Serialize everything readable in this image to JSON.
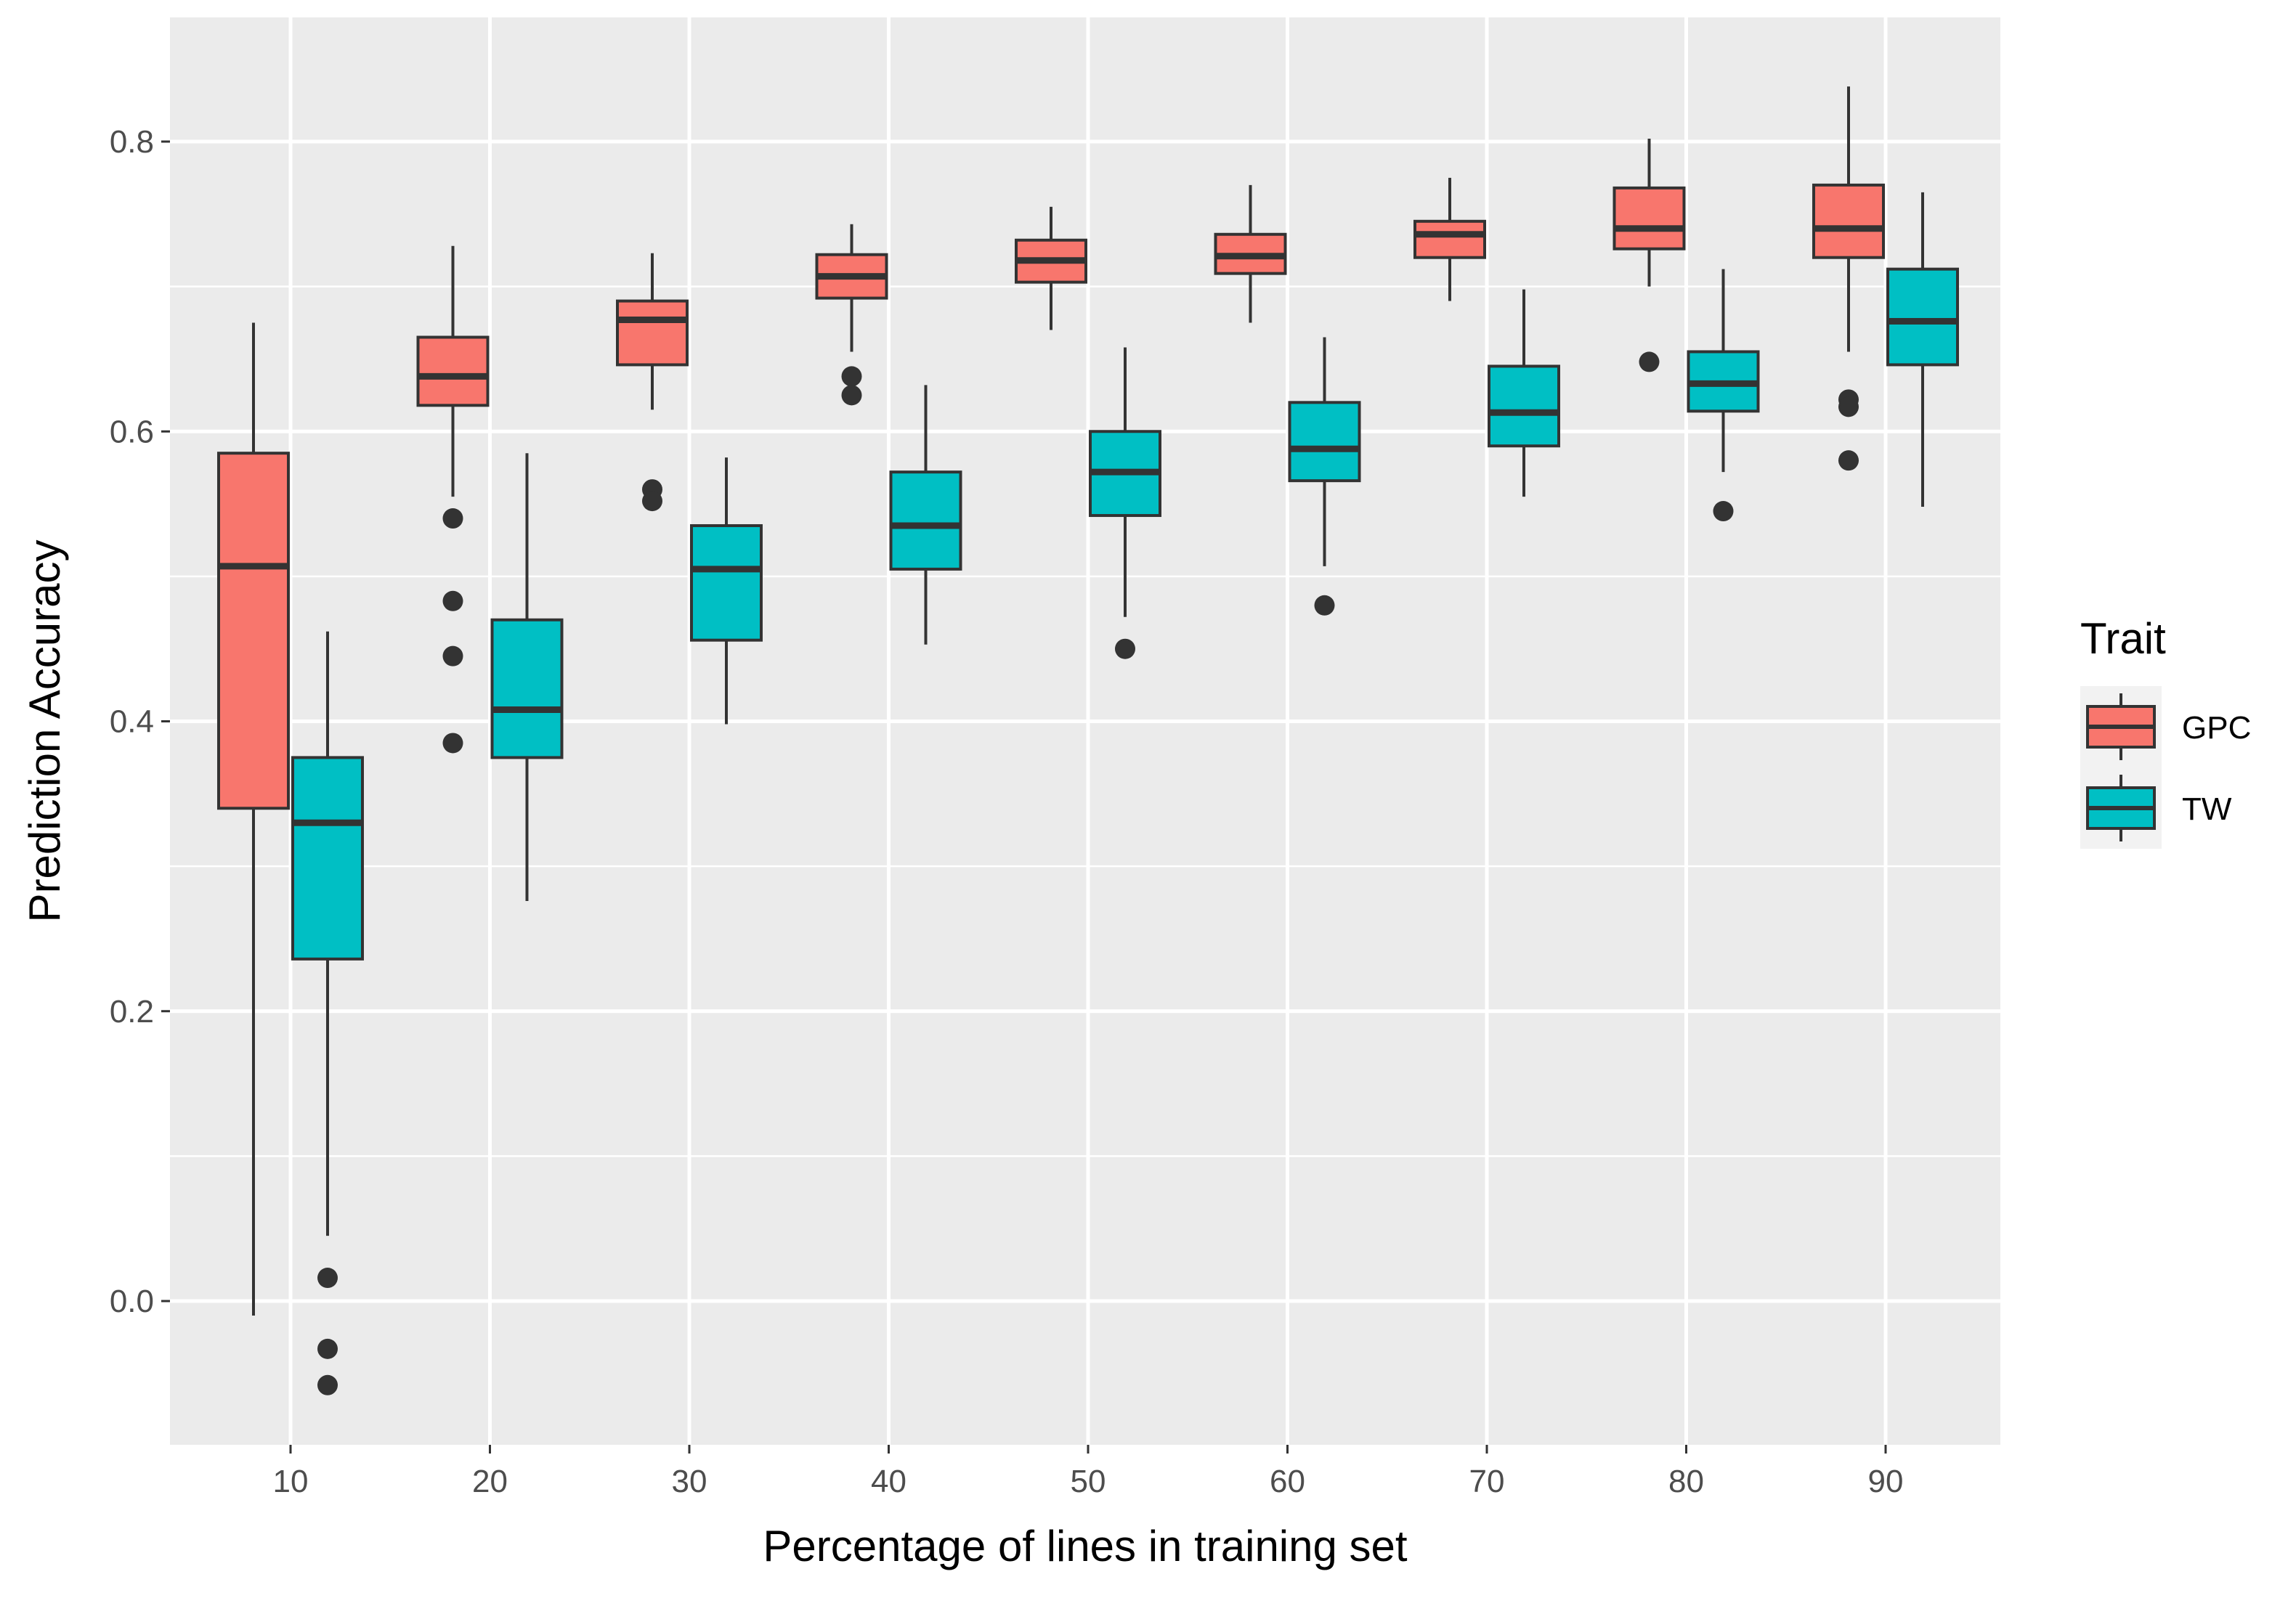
{
  "chart_data": {
    "type": "boxplot",
    "xlabel": "Percentage of lines in training set",
    "ylabel": "Prediction Accuracy",
    "categories": [
      "10",
      "20",
      "30",
      "40",
      "50",
      "60",
      "70",
      "80",
      "90"
    ],
    "x_values": [
      10,
      20,
      30,
      40,
      50,
      60,
      70,
      80,
      90
    ],
    "y_ticks": [
      0.0,
      0.2,
      0.4,
      0.6,
      0.8
    ],
    "y_tick_labels": [
      "0.0",
      "0.2",
      "0.4",
      "0.6",
      "0.8"
    ],
    "ylim": [
      -0.1,
      0.88
    ],
    "grid": true,
    "legend": {
      "title": "Trait",
      "position": "right"
    },
    "series": [
      {
        "name": "GPC",
        "color": "#F8766D",
        "boxes": [
          {
            "x": "10",
            "whisker_low": -0.01,
            "q1": 0.34,
            "median": 0.507,
            "q3": 0.585,
            "whisker_high": 0.675,
            "outliers": []
          },
          {
            "x": "20",
            "whisker_low": 0.555,
            "q1": 0.618,
            "median": 0.638,
            "q3": 0.665,
            "whisker_high": 0.728,
            "outliers": [
              0.54,
              0.483,
              0.445,
              0.385
            ]
          },
          {
            "x": "30",
            "whisker_low": 0.615,
            "q1": 0.646,
            "median": 0.677,
            "q3": 0.69,
            "whisker_high": 0.723,
            "outliers": [
              0.56,
              0.552
            ]
          },
          {
            "x": "40",
            "whisker_low": 0.655,
            "q1": 0.692,
            "median": 0.707,
            "q3": 0.722,
            "whisker_high": 0.743,
            "outliers": [
              0.638,
              0.625
            ]
          },
          {
            "x": "50",
            "whisker_low": 0.67,
            "q1": 0.703,
            "median": 0.718,
            "q3": 0.732,
            "whisker_high": 0.755,
            "outliers": []
          },
          {
            "x": "60",
            "whisker_low": 0.675,
            "q1": 0.709,
            "median": 0.721,
            "q3": 0.736,
            "whisker_high": 0.77,
            "outliers": []
          },
          {
            "x": "70",
            "whisker_low": 0.69,
            "q1": 0.72,
            "median": 0.736,
            "q3": 0.745,
            "whisker_high": 0.775,
            "outliers": []
          },
          {
            "x": "80",
            "whisker_low": 0.7,
            "q1": 0.726,
            "median": 0.74,
            "q3": 0.768,
            "whisker_high": 0.802,
            "outliers": [
              0.648
            ]
          },
          {
            "x": "90",
            "whisker_low": 0.655,
            "q1": 0.72,
            "median": 0.74,
            "q3": 0.77,
            "whisker_high": 0.838,
            "outliers": [
              0.622,
              0.617,
              0.58
            ]
          }
        ]
      },
      {
        "name": "TW",
        "color": "#00BFC4",
        "boxes": [
          {
            "x": "10",
            "whisker_low": 0.045,
            "q1": 0.236,
            "median": 0.33,
            "q3": 0.375,
            "whisker_high": 0.462,
            "outliers": [
              0.016,
              -0.033,
              -0.058
            ]
          },
          {
            "x": "20",
            "whisker_low": 0.276,
            "q1": 0.375,
            "median": 0.408,
            "q3": 0.47,
            "whisker_high": 0.585,
            "outliers": []
          },
          {
            "x": "30",
            "whisker_low": 0.398,
            "q1": 0.456,
            "median": 0.505,
            "q3": 0.535,
            "whisker_high": 0.582,
            "outliers": []
          },
          {
            "x": "40",
            "whisker_low": 0.453,
            "q1": 0.505,
            "median": 0.535,
            "q3": 0.572,
            "whisker_high": 0.632,
            "outliers": []
          },
          {
            "x": "50",
            "whisker_low": 0.472,
            "q1": 0.542,
            "median": 0.572,
            "q3": 0.6,
            "whisker_high": 0.658,
            "outliers": [
              0.45
            ]
          },
          {
            "x": "60",
            "whisker_low": 0.507,
            "q1": 0.566,
            "median": 0.588,
            "q3": 0.62,
            "whisker_high": 0.665,
            "outliers": [
              0.48
            ]
          },
          {
            "x": "70",
            "whisker_low": 0.555,
            "q1": 0.59,
            "median": 0.613,
            "q3": 0.645,
            "whisker_high": 0.698,
            "outliers": []
          },
          {
            "x": "80",
            "whisker_low": 0.572,
            "q1": 0.614,
            "median": 0.633,
            "q3": 0.655,
            "whisker_high": 0.712,
            "outliers": [
              0.545
            ]
          },
          {
            "x": "90",
            "whisker_low": 0.548,
            "q1": 0.646,
            "median": 0.676,
            "q3": 0.712,
            "whisker_high": 0.765,
            "outliers": []
          }
        ]
      }
    ]
  }
}
